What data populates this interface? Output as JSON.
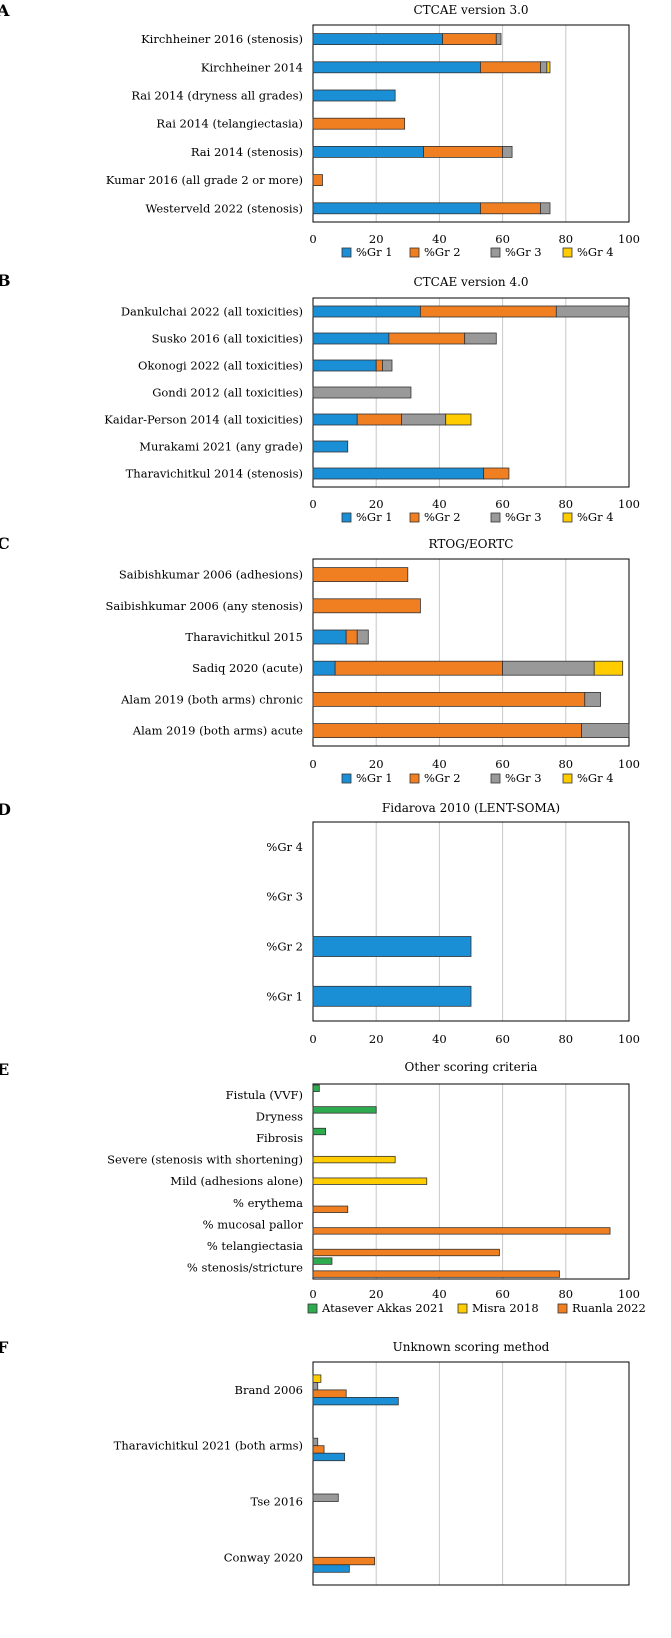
{
  "colors": {
    "blue": "#1a8fd6",
    "orange": "#f07f22",
    "gray": "#999999",
    "yellow": "#ffcc00",
    "green": "#2eab4f",
    "grid": "#c8c8c8",
    "axis": "#000000"
  },
  "chart_data": [
    {
      "panel": "A",
      "type": "bar",
      "stacked": true,
      "title": "CTCAE version 3.0",
      "xlim": [
        0,
        100
      ],
      "xticks": [
        0,
        20,
        40,
        60,
        80,
        100
      ],
      "categories": [
        "Kirchheiner 2016 (stenosis)",
        "Kirchheiner 2014",
        "Rai 2014 (dryness all grades)",
        "Rai 2014 (telangiectasia)",
        "Rai 2014 (stenosis)",
        "Kumar 2016 (all grade 2 or more)",
        "Westerveld 2022 (stenosis)"
      ],
      "series": [
        {
          "name": "%Gr 1",
          "color": "#1a8fd6",
          "values": [
            41,
            53,
            26,
            0,
            35,
            0,
            53
          ]
        },
        {
          "name": "%Gr 2",
          "color": "#f07f22",
          "values": [
            17,
            19,
            0,
            29,
            25,
            3,
            19
          ]
        },
        {
          "name": "%Gr 3",
          "color": "#999999",
          "values": [
            1.5,
            2,
            0,
            0,
            3,
            0,
            3
          ]
        },
        {
          "name": "%Gr 4",
          "color": "#ffcc00",
          "values": [
            0,
            1,
            0,
            0,
            0,
            0,
            0
          ]
        }
      ],
      "legend": [
        "%Gr 1",
        "%Gr 2",
        "%Gr 3",
        "%Gr 4"
      ]
    },
    {
      "panel": "B",
      "type": "bar",
      "stacked": true,
      "title": "CTCAE version 4.0",
      "xlim": [
        0,
        100
      ],
      "xticks": [
        0,
        20,
        40,
        60,
        80,
        100
      ],
      "categories": [
        "Dankulchai 2022 (all toxicities)",
        "Susko 2016 (all toxicities)",
        "Okonogi 2022 (all toxicities)",
        "Gondi 2012 (all toxicities)",
        "Kaidar-Person 2014 (all toxicities)",
        "Murakami 2021 (any grade)",
        "Tharavichitkul 2014 (stenosis)"
      ],
      "series": [
        {
          "name": "%Gr 1",
          "color": "#1a8fd6",
          "values": [
            34,
            24,
            20,
            0,
            14,
            11,
            54
          ]
        },
        {
          "name": "%Gr 2",
          "color": "#f07f22",
          "values": [
            43,
            24,
            2,
            0,
            14,
            0,
            8
          ]
        },
        {
          "name": "%Gr 3",
          "color": "#999999",
          "values": [
            23,
            10,
            3,
            31,
            14,
            0,
            0
          ]
        },
        {
          "name": "%Gr 4",
          "color": "#ffcc00",
          "values": [
            0,
            0,
            0,
            0,
            8,
            0,
            0
          ]
        }
      ],
      "legend": [
        "%Gr 1",
        "%Gr 2",
        "%Gr 3",
        "%Gr 4"
      ]
    },
    {
      "panel": "C",
      "type": "bar",
      "stacked": true,
      "title": "RTOG/EORTC",
      "xlim": [
        0,
        100
      ],
      "xticks": [
        0,
        20,
        40,
        60,
        80,
        100
      ],
      "categories": [
        "Saibishkumar 2006 (adhesions)",
        "Saibishkumar 2006 (any stenosis)",
        "Tharavichitkul 2015",
        "Sadiq 2020 (acute)",
        "Alam 2019 (both arms) chronic",
        "Alam 2019 (both arms) acute"
      ],
      "series": [
        {
          "name": "%Gr 1",
          "color": "#1a8fd6",
          "values": [
            0,
            0,
            10.5,
            7,
            0,
            0
          ]
        },
        {
          "name": "%Gr 2",
          "color": "#f07f22",
          "values": [
            30,
            34,
            3.5,
            53,
            86,
            85
          ]
        },
        {
          "name": "%Gr 3",
          "color": "#999999",
          "values": [
            0,
            0,
            3.5,
            29,
            5,
            15
          ]
        },
        {
          "name": "%Gr 4",
          "color": "#ffcc00",
          "values": [
            0,
            0,
            0,
            9,
            0,
            0
          ]
        }
      ],
      "legend": [
        "%Gr 1",
        "%Gr 2",
        "%Gr 3",
        "%Gr 4"
      ]
    },
    {
      "panel": "D",
      "type": "bar",
      "stacked": false,
      "title": "Fidarova 2010 (LENT-SOMA)",
      "xlim": [
        0,
        100
      ],
      "xticks": [
        0,
        20,
        40,
        60,
        80,
        100
      ],
      "categories": [
        "%Gr 4",
        "%Gr 3",
        "%Gr 2",
        "%Gr 1"
      ],
      "series": [
        {
          "name": "Fidarova 2010",
          "color": "#1a8fd6",
          "values": [
            0,
            0,
            50,
            50
          ]
        }
      ],
      "legend": []
    },
    {
      "panel": "E",
      "type": "bar",
      "stacked": false,
      "title": "Other scoring criteria",
      "xlim": [
        0,
        100
      ],
      "xticks": [
        0,
        20,
        40,
        60,
        80,
        100
      ],
      "categories": [
        "Fistula (VVF)",
        "Dryness",
        "Fibrosis",
        "Severe (stenosis with shortening)",
        "Mild (adhesions alone)",
        "% erythema",
        "% mucosal pallor",
        "% telangiectasia",
        "% stenosis/stricture"
      ],
      "series": [
        {
          "name": "Atasever Akkas 2021",
          "color": "#2eab4f",
          "values": [
            2,
            20,
            4,
            0,
            0,
            0,
            0,
            0,
            6
          ]
        },
        {
          "name": "Misra 2018",
          "color": "#ffcc00",
          "values": [
            0,
            0,
            0,
            26,
            36,
            0,
            0,
            0,
            0
          ]
        },
        {
          "name": "Ruanla 2022",
          "color": "#f07f22",
          "values": [
            0,
            0,
            0,
            0,
            0,
            11,
            94,
            59,
            78
          ]
        }
      ],
      "legend": [
        "Atasever Akkas 2021",
        "Misra 2018",
        "Ruanla 2022"
      ]
    },
    {
      "panel": "F",
      "type": "bar",
      "stacked": false,
      "title": "Unknown scoring method",
      "xlim": [
        0,
        100
      ],
      "xticks": [
        0,
        20,
        40,
        60,
        80,
        100
      ],
      "categories": [
        "Brand 2006",
        "Tharavichitkul 2021 (both arms)",
        "Tse 2016",
        "Conway 2020"
      ],
      "series": [
        {
          "name": "%Gr 4",
          "color": "#ffcc00",
          "values": [
            2.5,
            0,
            0,
            0
          ]
        },
        {
          "name": "%Gr 3",
          "color": "#999999",
          "values": [
            1.5,
            1.5,
            8,
            0
          ]
        },
        {
          "name": "%Gr 2",
          "color": "#f07f22",
          "values": [
            10.5,
            3.5,
            0,
            19.5
          ]
        },
        {
          "name": "%Gr 1",
          "color": "#1a8fd6",
          "values": [
            27,
            10,
            0,
            11.5
          ]
        }
      ],
      "legend": []
    }
  ]
}
